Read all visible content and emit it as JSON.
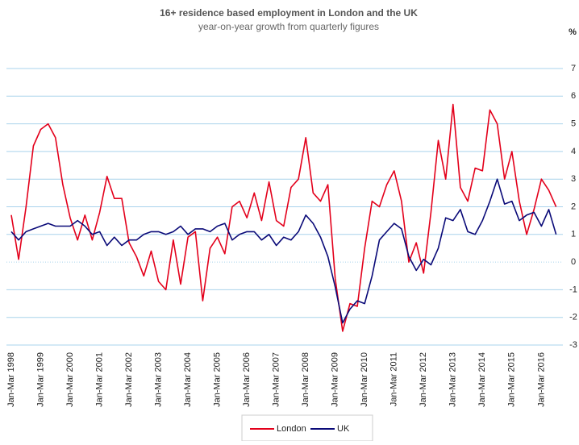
{
  "chart_data": {
    "type": "line",
    "title": "16+ residence based employment in London and the UK",
    "subtitle": "year-on-year growth from quarterly figures",
    "y_unit": "%",
    "categories": [
      "Jan-Mar 1998",
      null,
      null,
      null,
      "Jan-Mar 1999",
      null,
      null,
      null,
      "Jan-Mar 2000",
      null,
      null,
      null,
      "Jan-Mar 2001",
      null,
      null,
      null,
      "Jan-Mar 2002",
      null,
      null,
      null,
      "Jan-Mar 2003",
      null,
      null,
      null,
      "Jan-Mar 2004",
      null,
      null,
      null,
      "Jan-Mar 2005",
      null,
      null,
      null,
      "Jan-Mar 2006",
      null,
      null,
      null,
      "Jan-Mar 2007",
      null,
      null,
      null,
      "Jan-Mar 2008",
      null,
      null,
      null,
      "Jan-Mar 2009",
      null,
      null,
      null,
      "Jan-Mar 2010",
      null,
      null,
      null,
      "Jan-Mar 2011",
      null,
      null,
      null,
      "Jan-Mar 2012",
      null,
      null,
      null,
      "Jan-Mar 2013",
      null,
      null,
      null,
      "Jan-Mar 2014",
      null,
      null,
      null,
      "Jan-Mar 2015",
      null,
      null,
      null,
      "Jan-Mar 2016",
      null,
      null
    ],
    "series": [
      {
        "name": "London",
        "color": "#e3001b",
        "values": [
          1.7,
          0.1,
          2.0,
          4.2,
          4.8,
          5.0,
          4.5,
          2.8,
          1.6,
          0.8,
          1.7,
          0.8,
          1.8,
          3.1,
          2.3,
          2.3,
          0.7,
          0.2,
          -0.5,
          0.4,
          -0.7,
          -1.0,
          0.8,
          -0.8,
          0.9,
          1.1,
          -1.4,
          0.5,
          0.9,
          0.3,
          2.0,
          2.2,
          1.6,
          2.5,
          1.5,
          2.9,
          1.5,
          1.3,
          2.7,
          3.0,
          4.5,
          2.5,
          2.2,
          2.8,
          -0.6,
          -2.5,
          -1.5,
          -1.6,
          0.5,
          2.2,
          2.0,
          2.8,
          3.3,
          2.2,
          0.0,
          0.7,
          -0.4,
          1.8,
          4.4,
          3.0,
          5.7,
          2.7,
          2.2,
          3.4,
          3.3,
          5.5,
          5.0,
          3.0,
          4.0,
          2.2,
          1.0,
          1.9,
          3.0,
          2.6,
          2.0
        ]
      },
      {
        "name": "UK",
        "color": "#0a0a78",
        "values": [
          1.1,
          0.8,
          1.1,
          1.2,
          1.3,
          1.4,
          1.3,
          1.3,
          1.3,
          1.5,
          1.3,
          1.0,
          1.1,
          0.6,
          0.9,
          0.6,
          0.8,
          0.8,
          1.0,
          1.1,
          1.1,
          1.0,
          1.1,
          1.3,
          1.0,
          1.2,
          1.2,
          1.1,
          1.3,
          1.4,
          0.8,
          1.0,
          1.1,
          1.1,
          0.8,
          1.0,
          0.6,
          0.9,
          0.8,
          1.1,
          1.7,
          1.4,
          0.9,
          0.2,
          -0.9,
          -2.2,
          -1.7,
          -1.4,
          -1.5,
          -0.5,
          0.8,
          1.1,
          1.4,
          1.2,
          0.2,
          -0.3,
          0.1,
          -0.1,
          0.5,
          1.6,
          1.5,
          1.9,
          1.1,
          1.0,
          1.5,
          2.2,
          3.0,
          2.1,
          2.2,
          1.5,
          1.7,
          1.8,
          1.3,
          1.9,
          1.0
        ]
      }
    ],
    "ylim": [
      -3,
      7
    ],
    "yticks": [
      -3,
      -2,
      -1,
      0,
      1,
      2,
      3,
      4,
      5,
      6,
      7
    ],
    "grid": true,
    "legend": "bottom"
  }
}
